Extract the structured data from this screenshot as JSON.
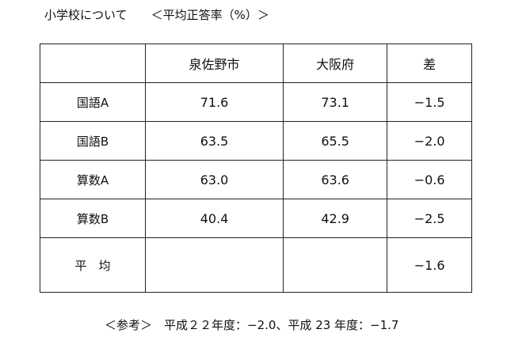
{
  "header": {
    "title": "小学校について",
    "subtitle": "＜平均正答率（%）＞"
  },
  "table": {
    "columns": [
      "泉佐野市",
      "大阪府",
      "差"
    ],
    "rows": [
      {
        "label": "国語A",
        "cells": [
          "71.6",
          "73.1",
          "−1.5"
        ]
      },
      {
        "label": "国語B",
        "cells": [
          "63.5",
          "65.5",
          "−2.0"
        ]
      },
      {
        "label": "算数A",
        "cells": [
          "63.0",
          "63.6",
          "−0.6"
        ]
      },
      {
        "label": "算数B",
        "cells": [
          "40.4",
          "42.9",
          "−2.5"
        ]
      },
      {
        "label": "平　均",
        "cells": [
          null,
          null,
          "−1.6"
        ]
      }
    ]
  },
  "footer": {
    "note": "＜参考＞　平成２２年度：−2.0、平成 23 年度：−1.7"
  }
}
